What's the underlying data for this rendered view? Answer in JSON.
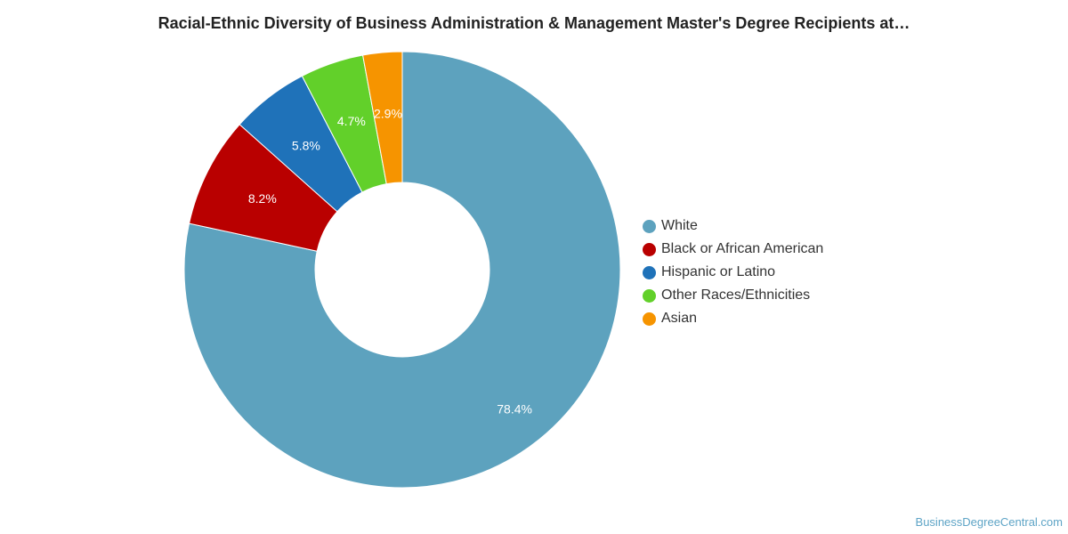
{
  "chart_data": {
    "type": "pie",
    "title": "Racial-Ethnic Diversity of Business Administration & Management Master's Degree Recipients at…",
    "categories": [
      "White",
      "Black or African American",
      "Hispanic or Latino",
      "Other Races/Ethnicities",
      "Asian"
    ],
    "values": [
      78.4,
      8.2,
      5.8,
      4.7,
      2.9
    ],
    "value_labels": [
      "78.4%",
      "8.2%",
      "5.8%",
      "4.7%",
      "2.9%"
    ],
    "colors": [
      "#5da2be",
      "#b90000",
      "#1f72b9",
      "#62d02a",
      "#f69400"
    ],
    "donut": true,
    "legend_position": "right"
  },
  "watermark": "BusinessDegreeCentral.com"
}
